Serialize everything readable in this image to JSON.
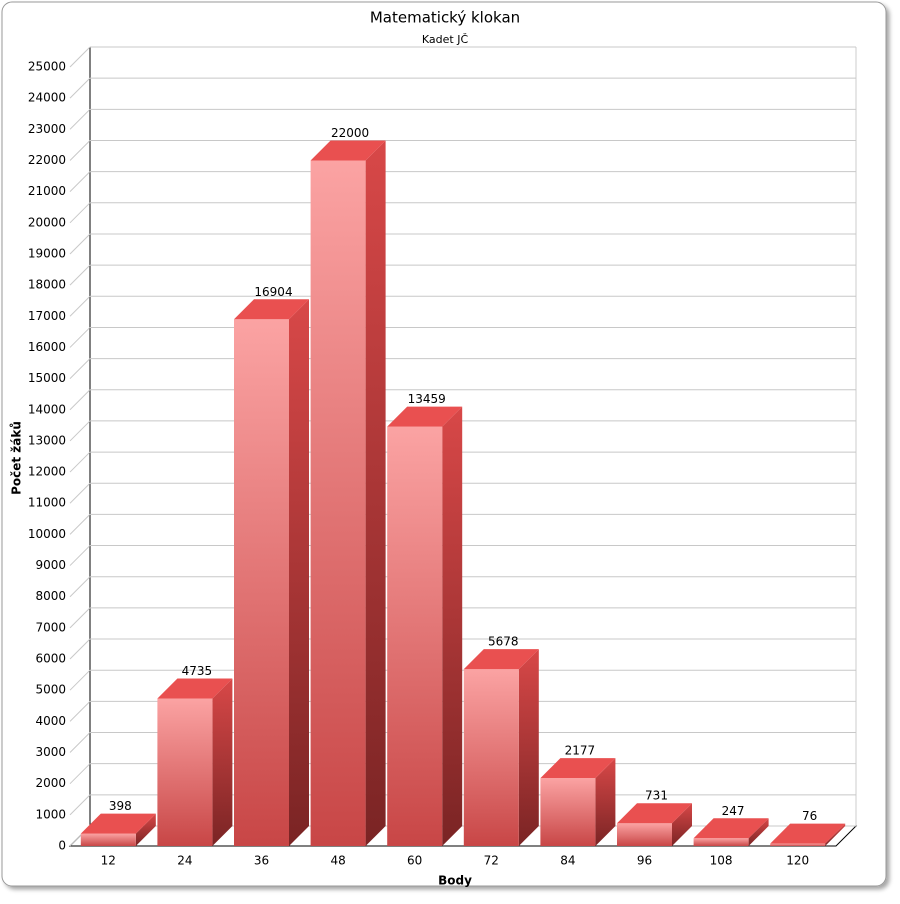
{
  "chart_data": {
    "type": "bar3d",
    "title": "Matematický klokan",
    "subtitle": "Kadet JČ",
    "x_label": "Body",
    "y_label": "Počet žáků",
    "categories": [
      "12",
      "24",
      "36",
      "48",
      "60",
      "72",
      "84",
      "96",
      "108",
      "120"
    ],
    "values": [
      398,
      4735,
      16904,
      22000,
      13459,
      5678,
      2177,
      731,
      247,
      76
    ],
    "color": "#e95050",
    "ylim": [
      0,
      25000
    ],
    "yticks": [
      0,
      1000,
      2000,
      3000,
      4000,
      5000,
      6000,
      7000,
      8000,
      9000,
      10000,
      11000,
      12000,
      13000,
      14000,
      15000,
      16000,
      17000,
      18000,
      19000,
      20000,
      21000,
      22000,
      23000,
      24000,
      25000
    ],
    "grid": true
  }
}
